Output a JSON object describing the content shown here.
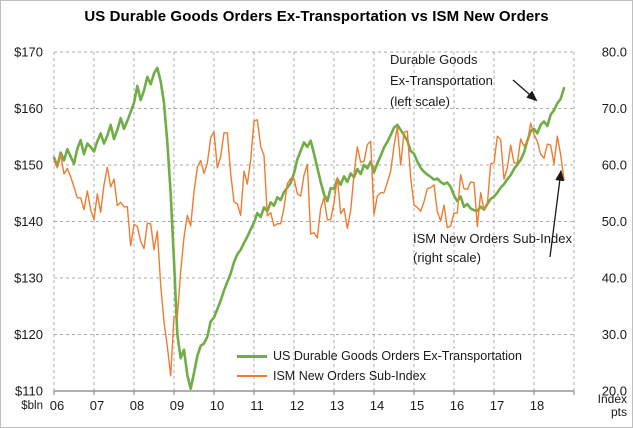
{
  "chart_data": {
    "type": "line",
    "title": "US Durable Goods Orders Ex-Transportation vs ISM New Orders",
    "x": {
      "start": "2006-01",
      "end": "2018-10",
      "frequency": "monthly",
      "tick_labels": [
        "06",
        "07",
        "08",
        "09",
        "10",
        "11",
        "12",
        "13",
        "14",
        "15",
        "16",
        "17",
        "18"
      ]
    },
    "axes": {
      "left": {
        "min": 110,
        "max": 170,
        "step": 10,
        "ticks": [
          "$170",
          "$160",
          "$150",
          "$140",
          "$130",
          "$120",
          "$110"
        ],
        "values": [
          170,
          160,
          150,
          140,
          130,
          120,
          110
        ],
        "unit_label": "$bln"
      },
      "right": {
        "min": 20,
        "max": 80,
        "step": 10,
        "ticks": [
          "80.0",
          "70.0",
          "60.0",
          "50.0",
          "40.0",
          "30.0",
          "20.0"
        ],
        "values": [
          80,
          70,
          60,
          50,
          40,
          30,
          20
        ],
        "unit_lines": [
          "Index",
          "pts"
        ]
      }
    },
    "grid": {
      "on": true,
      "style": "dashed"
    },
    "legend_position": "bottom-center-inside",
    "series": [
      {
        "name": "US Durable Goods Orders Ex-Transportation",
        "axis": "left",
        "color": "#70AD47",
        "stroke_width": 2.6,
        "values": [
          151.3,
          149.8,
          152.2,
          150.8,
          152.8,
          151.5,
          150.2,
          152.9,
          154.4,
          151.9,
          153.8,
          153.2,
          152.4,
          154.2,
          155.6,
          153.8,
          155.2,
          157.1,
          154.6,
          156.2,
          158.3,
          156.4,
          157.8,
          159.4,
          161.0,
          164.0,
          161.5,
          163.2,
          165.6,
          164.3,
          166.2,
          167.2,
          164.8,
          161.0,
          154.0,
          145.0,
          133.0,
          120.0,
          115.8,
          117.3,
          112.8,
          110.4,
          113.2,
          116.2,
          118.0,
          118.4,
          119.6,
          122.3,
          123.0,
          124.5,
          126.0,
          127.8,
          129.3,
          130.8,
          132.8,
          134.2,
          135.0,
          136.2,
          137.3,
          138.6,
          139.8,
          141.5,
          140.8,
          142.5,
          141.8,
          143.4,
          142.8,
          144.3,
          143.8,
          145.2,
          146.0,
          146.8,
          148.5,
          151.0,
          152.5,
          154.0,
          153.2,
          154.3,
          152.0,
          149.5,
          147.0,
          144.8,
          143.6,
          145.9,
          145.8,
          147.5,
          146.5,
          148.0,
          147.0,
          148.5,
          147.8,
          149.3,
          148.4,
          150.0,
          149.4,
          150.6,
          148.7,
          150.3,
          151.6,
          153.1,
          154.1,
          155.3,
          156.6,
          157.1,
          156.2,
          155.3,
          154.3,
          152.5,
          152.0,
          150.6,
          149.5,
          148.8,
          148.3,
          147.9,
          147.4,
          147.6,
          147.0,
          146.6,
          146.9,
          146.1,
          144.6,
          143.6,
          144.4,
          142.6,
          143.1,
          142.3,
          142.0,
          141.9,
          142.6,
          142.1,
          143.1,
          144.0,
          144.4,
          145.1,
          146.0,
          146.6,
          147.5,
          148.2,
          149.3,
          150.1,
          150.9,
          152.2,
          154.3,
          156.0,
          156.4,
          155.6,
          157.1,
          157.7,
          156.9,
          158.9,
          159.7,
          160.9,
          161.7,
          163.6
        ]
      },
      {
        "name": "ISM New Orders Sub-Index",
        "axis": "right",
        "color": "#ED7D31",
        "stroke_width": 1.4,
        "values": [
          61.0,
          59.5,
          61.9,
          58.4,
          59.4,
          57.9,
          56.1,
          54.2,
          54.2,
          52.1,
          55.4,
          52.1,
          50.3,
          54.9,
          51.6,
          56.5,
          59.6,
          56.1,
          57.5,
          52.8,
          53.4,
          52.6,
          52.6,
          45.7,
          49.5,
          49.1,
          46.5,
          45.2,
          49.7,
          49.6,
          45.0,
          48.3,
          38.8,
          32.2,
          27.9,
          22.7,
          33.2,
          33.1,
          41.2,
          47.2,
          51.1,
          49.2,
          55.3,
          59.6,
          60.8,
          58.5,
          60.3,
          64.8,
          65.9,
          59.5,
          61.5,
          65.7,
          65.7,
          58.5,
          53.5,
          53.1,
          51.1,
          58.9,
          56.6,
          60.9,
          67.8,
          68.0,
          63.3,
          61.7,
          51.0,
          51.6,
          49.2,
          49.6,
          49.6,
          52.4,
          56.7,
          57.6,
          57.6,
          54.9,
          54.5,
          58.2,
          60.1,
          47.8,
          48.0,
          47.1,
          52.3,
          54.2,
          50.3,
          50.3,
          53.3,
          57.8,
          51.4,
          52.3,
          48.8,
          51.9,
          58.3,
          63.2,
          60.5,
          60.6,
          63.6,
          64.2,
          51.2,
          54.5,
          55.1,
          55.1,
          56.9,
          58.9,
          63.4,
          66.7,
          60.0,
          65.8,
          66.0,
          57.8,
          52.9,
          52.5,
          51.8,
          53.5,
          55.8,
          56.0,
          56.5,
          51.7,
          50.1,
          52.9,
          48.9,
          49.2,
          51.5,
          51.5,
          58.3,
          55.8,
          55.7,
          57.0,
          56.9,
          49.1,
          55.1,
          52.1,
          53.0,
          60.2,
          60.4,
          65.1,
          64.5,
          57.5,
          59.5,
          63.5,
          60.4,
          60.3,
          64.6,
          63.4,
          64.0,
          67.4,
          65.4,
          64.2,
          61.9,
          61.2,
          63.7,
          63.5,
          60.2,
          65.1,
          61.8,
          57.4
        ]
      }
    ]
  },
  "annotations": {
    "durable": {
      "lines": [
        "Durable Goods",
        "Ex-Transportation",
        "(left scale)"
      ]
    },
    "ism": {
      "lines": [
        "ISM New Orders Sub-Index",
        "(right scale)"
      ]
    }
  }
}
